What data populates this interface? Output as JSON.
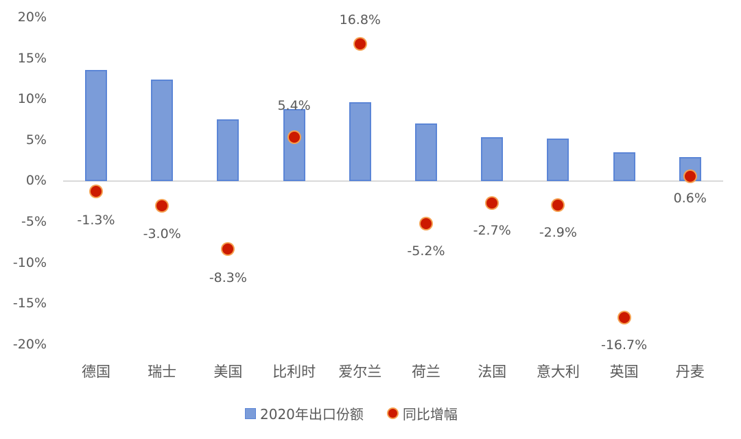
{
  "chart_data": {
    "type": "bar",
    "title": "",
    "xlabel": "",
    "ylabel": "",
    "ylim": [
      -0.2,
      0.2
    ],
    "yticks": [
      "20%",
      "15%",
      "10%",
      "5%",
      "0%",
      "-5%",
      "-10%",
      "-15%",
      "-20%"
    ],
    "grid": false,
    "legend_position": "bottom",
    "categories": [
      "德国",
      "瑞士",
      "美国",
      "比利时",
      "爱尔兰",
      "荷兰",
      "法国",
      "意大利",
      "英国",
      "丹麦"
    ],
    "series": [
      {
        "name": "2020年出口份额",
        "type": "bar",
        "color": "#7b9cd9",
        "values": [
          13.6,
          12.4,
          7.6,
          8.8,
          9.7,
          7.1,
          5.4,
          5.2,
          3.5,
          2.9
        ]
      },
      {
        "name": "同比增幅",
        "type": "scatter",
        "color": "#cc1a00",
        "values": [
          -1.3,
          -3.0,
          -8.3,
          5.4,
          16.8,
          -5.2,
          -2.7,
          -2.9,
          -16.7,
          0.6
        ],
        "labels": [
          "-1.3%",
          "-3.0%",
          "-8.3%",
          "5.4%",
          "16.8%",
          "-5.2%",
          "-2.7%",
          "-2.9%",
          "-16.7%",
          "0.6%"
        ]
      }
    ]
  },
  "legend": {
    "bar_label": "2020年出口份额",
    "dot_label": "同比增幅"
  }
}
